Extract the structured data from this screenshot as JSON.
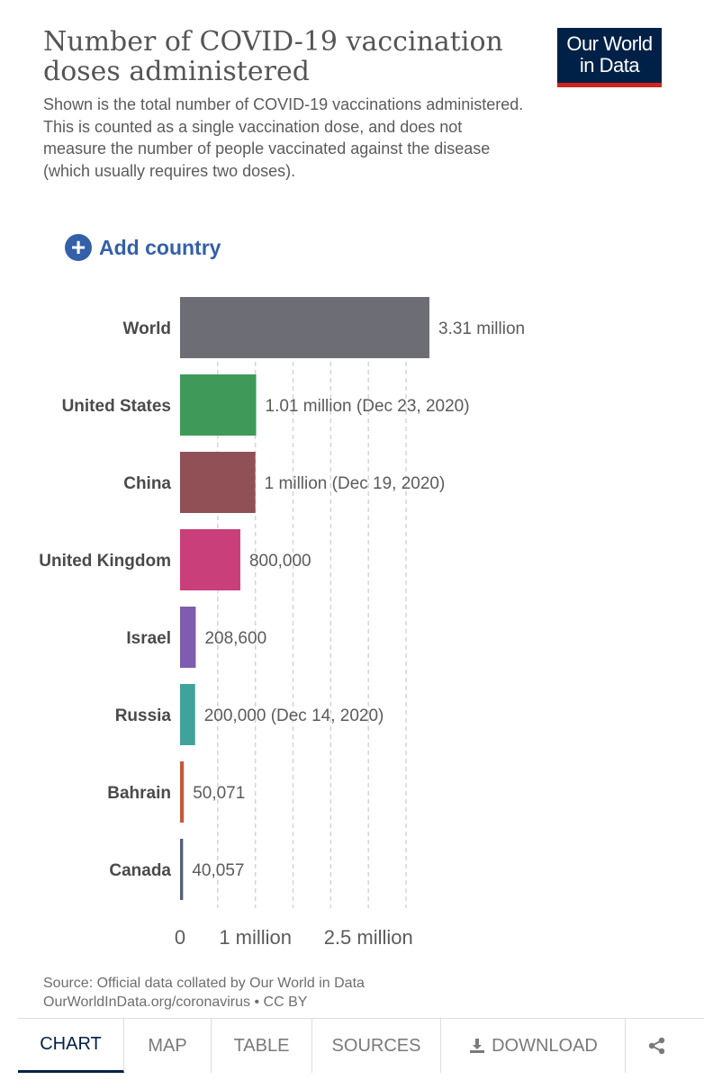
{
  "header": {
    "title": "Number of COVID-19 vaccination doses administered",
    "logo_line1": "Our World",
    "logo_line2": "in Data",
    "subtitle": "Shown is the total number of COVID-19 vaccinations administered. This is counted as a single vaccination dose, and does not measure the number of people vaccinated against the disease (which usually requires two doses)."
  },
  "controls": {
    "add_country_label": "Add country"
  },
  "chart_data": {
    "type": "bar",
    "orientation": "horizontal",
    "categories": [
      "World",
      "United States",
      "China",
      "United Kingdom",
      "Israel",
      "Russia",
      "Bahrain",
      "Canada"
    ],
    "values": [
      3310000,
      1010000,
      1000000,
      800000,
      208600,
      200000,
      50071,
      40057
    ],
    "value_labels": [
      "3.31 million",
      "1.01 million (Dec 23, 2020)",
      "1 million (Dec 19, 2020)",
      "800,000",
      "208,600",
      "200,000 (Dec 14, 2020)",
      "50,071",
      "40,057"
    ],
    "colors": [
      "#6d6e75",
      "#3f9a5a",
      "#905055",
      "#c83f7a",
      "#7e5cb0",
      "#3fa39c",
      "#c55a36",
      "#545f7a"
    ],
    "xlim": [
      0,
      3310000
    ],
    "gridlines": [
      500000,
      1000000,
      1500000,
      2000000,
      2500000,
      3000000
    ],
    "ticks": [
      {
        "value": 0,
        "label": "0"
      },
      {
        "value": 1000000,
        "label": "1 million"
      },
      {
        "value": 2500000,
        "label": "2.5 million"
      }
    ]
  },
  "footer": {
    "source_line": "Source: Official data collated by Our World in Data",
    "license_line": "OurWorldInData.org/coronavirus • CC BY"
  },
  "tabs": [
    "CHART",
    "MAP",
    "TABLE",
    "SOURCES",
    "DOWNLOAD"
  ],
  "icons": {
    "download": "download-icon",
    "share": "share-icon",
    "add": "plus-circle-icon"
  }
}
